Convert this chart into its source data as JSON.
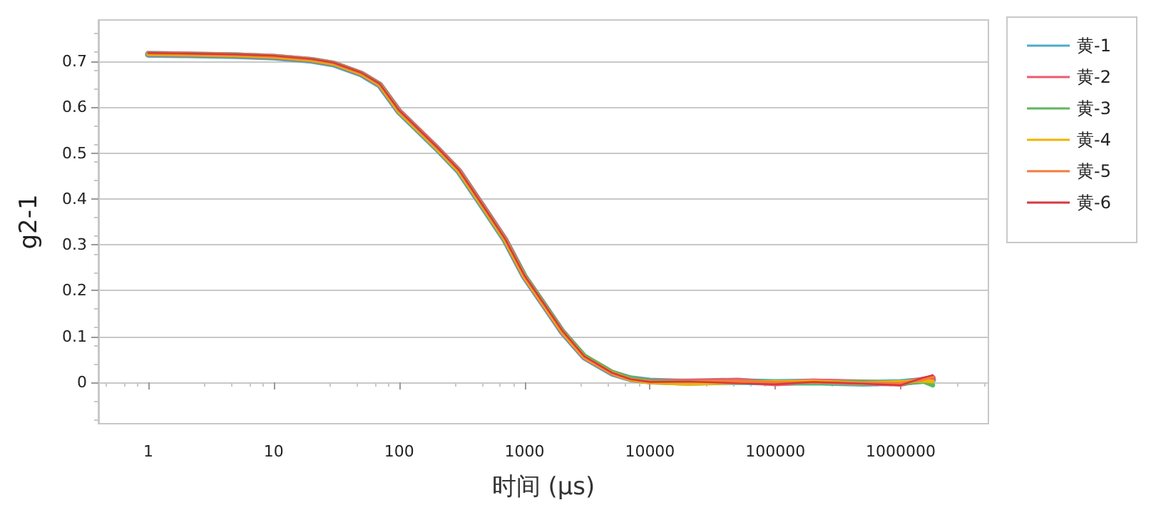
{
  "chart_data": {
    "type": "line",
    "xlabel": "时间 (μs)",
    "ylabel": "g2-1",
    "log": "x",
    "xlim": [
      0.4,
      5000000
    ],
    "xticks": [
      1,
      10,
      100,
      1000,
      10000,
      100000,
      1000000
    ],
    "ylim": [
      -0.09,
      0.79
    ],
    "yticks": [
      0,
      0.1,
      0.2,
      0.3,
      0.4,
      0.5,
      0.6,
      0.7
    ],
    "grid": "y",
    "legend": "top right",
    "marker": "none",
    "line_style": "solid",
    "x": [
      1,
      2,
      5,
      10,
      20,
      30,
      50,
      70,
      100,
      200,
      300,
      500,
      700,
      1000,
      1500,
      2000,
      3000,
      5000,
      7000,
      10000,
      20000,
      50000,
      100000,
      200000,
      500000,
      1000000,
      1500000,
      1800000
    ],
    "series": [
      {
        "name": "黄-1",
        "color": "#4bacc6",
        "values": [
          0.715,
          0.714,
          0.712,
          0.709,
          0.702,
          0.694,
          0.672,
          0.648,
          0.59,
          0.51,
          0.46,
          0.37,
          0.31,
          0.23,
          0.16,
          0.11,
          0.055,
          0.02,
          0.008,
          0.003,
          0,
          0.002,
          0,
          0.001,
          -0.002,
          0,
          0.004,
          0.006
        ]
      },
      {
        "name": "黄-2",
        "color": "#ee5a6e",
        "values": [
          0.716,
          0.715,
          0.713,
          0.71,
          0.703,
          0.695,
          0.673,
          0.649,
          0.591,
          0.511,
          0.461,
          0.371,
          0.311,
          0.231,
          0.161,
          0.111,
          0.056,
          0.021,
          0.008,
          0.002,
          0.002,
          0.004,
          -0.002,
          0.002,
          0,
          -0.003,
          0.006,
          0.01
        ]
      },
      {
        "name": "黄-3",
        "color": "#5cb85c",
        "values": [
          0.716,
          0.715,
          0.713,
          0.71,
          0.703,
          0.695,
          0.673,
          0.649,
          0.59,
          0.51,
          0.46,
          0.37,
          0.31,
          0.232,
          0.162,
          0.112,
          0.058,
          0.022,
          0.009,
          0.002,
          0,
          0.001,
          0.001,
          -0.001,
          0.001,
          -0.002,
          0.003,
          -0.006
        ]
      },
      {
        "name": "黄-4",
        "color": "#f0b400",
        "values": [
          0.716,
          0.715,
          0.713,
          0.71,
          0.703,
          0.695,
          0.673,
          0.649,
          0.59,
          0.51,
          0.46,
          0.37,
          0.31,
          0.23,
          0.16,
          0.11,
          0.055,
          0.02,
          0.006,
          0,
          -0.003,
          0,
          0.001,
          0.002,
          -0.002,
          0.001,
          0.004,
          0.002
        ]
      },
      {
        "name": "黄-5",
        "color": "#f07d3c",
        "values": [
          0.717,
          0.716,
          0.714,
          0.711,
          0.704,
          0.696,
          0.674,
          0.65,
          0.592,
          0.512,
          0.462,
          0.372,
          0.312,
          0.232,
          0.162,
          0.112,
          0.056,
          0.02,
          0.007,
          0.001,
          0.001,
          0.003,
          0,
          0,
          -0.001,
          -0.002,
          0.006,
          0.012
        ]
      },
      {
        "name": "黄-6",
        "color": "#d9363e",
        "values": [
          0.718,
          0.717,
          0.715,
          0.712,
          0.705,
          0.697,
          0.675,
          0.651,
          0.593,
          0.513,
          0.463,
          0.373,
          0.313,
          0.233,
          0.163,
          0.113,
          0.057,
          0.021,
          0.007,
          0.001,
          0.002,
          -0.002,
          -0.004,
          0.001,
          -0.003,
          -0.006,
          0.01,
          0.016
        ]
      }
    ]
  }
}
